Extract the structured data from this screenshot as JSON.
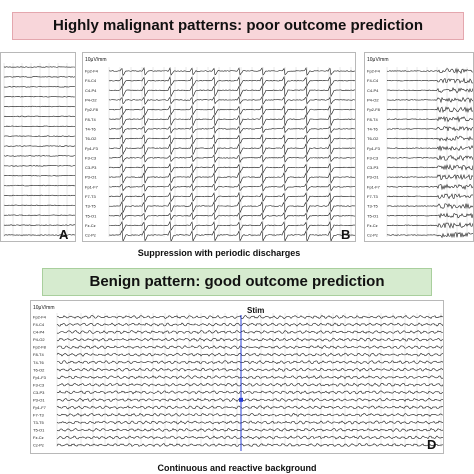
{
  "banners": {
    "malignant": "Highly malignant patterns: poor outcome prediction",
    "benign": "Benign pattern: good outcome prediction"
  },
  "panels": {
    "a": {
      "letter": "A"
    },
    "b": {
      "letter": "B",
      "scale": "10μV/mm"
    },
    "c": {
      "scale": "10μV/mm"
    },
    "d": {
      "letter": "D",
      "scale": "10μV/mm",
      "stim": "Stim"
    }
  },
  "captions": {
    "b": "Suppression with periodic discharges",
    "d": "Continuous and reactive background"
  },
  "channels": [
    "Fp2-F4",
    "F4-C4",
    "C4-P4",
    "P4-O2",
    "Fp2-F8",
    "F8-T4",
    "T4-T6",
    "T6-O2",
    "Fp1-F3",
    "F3-C3",
    "C3-P3",
    "P3-O1",
    "Fp1-F7",
    "F7-T3",
    "T3-T5",
    "T5-O1",
    "Fz-Cz",
    "Cz-Pz"
  ],
  "colors": {
    "trace": "#1a1a1a",
    "grid": "#d0d0d0",
    "stim_line": "#2a3fd6",
    "malignant_bg": "#f8d6da",
    "benign_bg": "#d6ebcf"
  }
}
